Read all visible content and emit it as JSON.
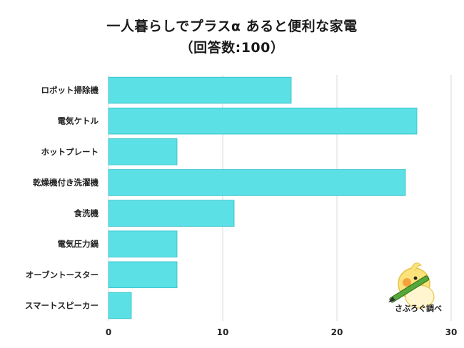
{
  "chart_data": {
    "type": "bar",
    "orientation": "horizontal",
    "title": "一人暮らしでプラスα あると便利な家電",
    "subtitle": "（回答数:100）",
    "categories": [
      "ロボット掃除機",
      "電気ケトル",
      "ホットプレート",
      "乾燥機付き洗濯機",
      "食洗機",
      "電気圧力鍋",
      "オーブントースター",
      "スマートスピーカー"
    ],
    "values": [
      16,
      27,
      6,
      26,
      11,
      6,
      6,
      2
    ],
    "xlim": [
      0,
      30
    ],
    "xticks": [
      0,
      10,
      20,
      30
    ],
    "grid": true,
    "bar_color": "#5be0e6",
    "bar_border": "#2fbfc7"
  },
  "watermark": {
    "text": "さぶろぐ調べ",
    "icon": "bird-with-pencil-icon"
  }
}
